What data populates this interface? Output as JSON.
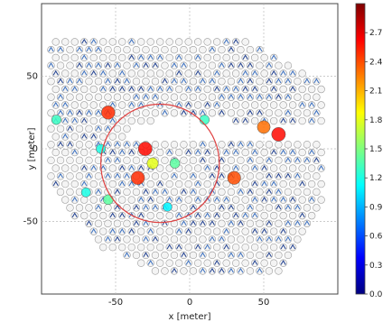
{
  "chart_data": {
    "type": "scatter",
    "xlabel": "x [meter]",
    "ylabel": "y [meter]",
    "xlim": [
      -100,
      100
    ],
    "ylim": [
      -100,
      100
    ],
    "xticks": [
      -50,
      0,
      50
    ],
    "yticks": [
      50,
      0,
      -50
    ],
    "grid": true,
    "colorbar": {
      "range": [
        0.0,
        3.0
      ],
      "ticks": [
        "2.7",
        "2.4",
        "2.1",
        "1.8",
        "1.5",
        "1.2",
        "0.9",
        "0.6",
        "0.3",
        "0.0"
      ],
      "colors": [
        "#00007f",
        "#0000ff",
        "#007fff",
        "#00ffff",
        "#7fff7f",
        "#ffff00",
        "#ff7f00",
        "#ff0000",
        "#7f0000"
      ]
    },
    "circle": {
      "center": [
        -20,
        -10
      ],
      "radius": 40,
      "color": "#e04040"
    },
    "highlighted_points": [
      {
        "x": -30,
        "y": 0,
        "value": 2.6
      },
      {
        "x": -35,
        "y": -20,
        "value": 2.5
      },
      {
        "x": -25,
        "y": -10,
        "value": 1.8
      },
      {
        "x": -60,
        "y": 0,
        "value": 1.2
      },
      {
        "x": -55,
        "y": -35,
        "value": 1.4
      },
      {
        "x": 60,
        "y": 10,
        "value": 2.6
      },
      {
        "x": 50,
        "y": 15,
        "value": 2.3
      },
      {
        "x": 30,
        "y": -20,
        "value": 2.4
      },
      {
        "x": -55,
        "y": 25,
        "value": 2.5
      },
      {
        "x": -90,
        "y": 20,
        "value": 1.3
      },
      {
        "x": -10,
        "y": -10,
        "value": 1.4
      },
      {
        "x": 10,
        "y": 20,
        "value": 1.3
      },
      {
        "x": -15,
        "y": -40,
        "value": 1.1
      },
      {
        "x": -70,
        "y": -30,
        "value": 1.2
      }
    ]
  }
}
